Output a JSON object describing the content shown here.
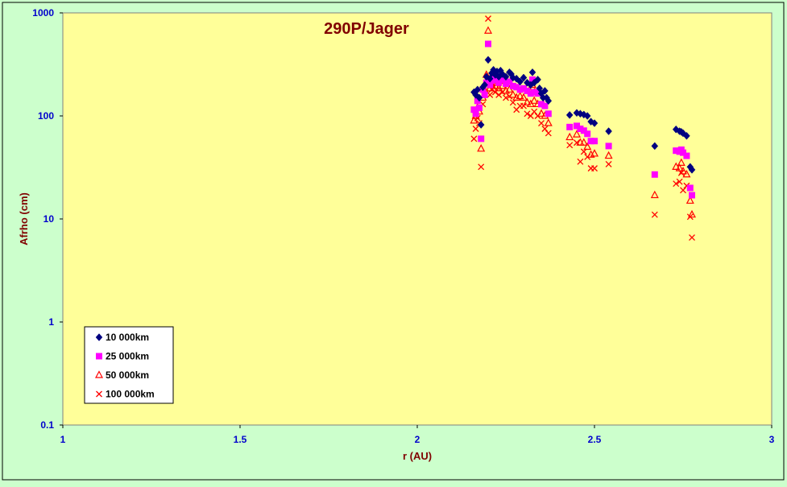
{
  "colors": {
    "page_bg": "#ccffcc",
    "plot_bg": "#ffff99",
    "title": "#800000",
    "tick_labels": "#0000cc"
  },
  "chart_data": {
    "type": "scatter",
    "title": "290P/Jager",
    "xlabel": "r (AU)",
    "ylabel": "Afrho (cm)",
    "xlim": [
      1,
      3
    ],
    "ylim": [
      0.1,
      1000
    ],
    "yscale": "log",
    "grid": false,
    "legend_position": "bottom-left",
    "x_ticks": [
      {
        "value": 1,
        "label": "1"
      },
      {
        "value": 1.5,
        "label": "1.5"
      },
      {
        "value": 2,
        "label": "2"
      },
      {
        "value": 2.5,
        "label": "2.5"
      },
      {
        "value": 3,
        "label": "3"
      }
    ],
    "y_ticks": [
      {
        "value": 0.1,
        "label": "0.1"
      },
      {
        "value": 1,
        "label": "1"
      },
      {
        "value": 10,
        "label": "10"
      },
      {
        "value": 100,
        "label": "100"
      },
      {
        "value": 1000,
        "label": "1000"
      }
    ],
    "series": [
      {
        "name": "10 000km",
        "marker": "diamond",
        "color": "#000080",
        "points": [
          [
            2.16,
            170
          ],
          [
            2.165,
            160
          ],
          [
            2.17,
            180
          ],
          [
            2.175,
            150
          ],
          [
            2.18,
            82
          ],
          [
            2.185,
            190
          ],
          [
            2.19,
            200
          ],
          [
            2.195,
            240
          ],
          [
            2.2,
            350
          ],
          [
            2.205,
            230
          ],
          [
            2.21,
            260
          ],
          [
            2.215,
            280
          ],
          [
            2.22,
            250
          ],
          [
            2.225,
            270
          ],
          [
            2.23,
            240
          ],
          [
            2.235,
            275
          ],
          [
            2.24,
            255
          ],
          [
            2.25,
            240
          ],
          [
            2.26,
            265
          ],
          [
            2.265,
            255
          ],
          [
            2.27,
            235
          ],
          [
            2.28,
            230
          ],
          [
            2.29,
            215
          ],
          [
            2.3,
            235
          ],
          [
            2.31,
            210
          ],
          [
            2.32,
            200
          ],
          [
            2.325,
            265
          ],
          [
            2.33,
            210
          ],
          [
            2.34,
            225
          ],
          [
            2.345,
            185
          ],
          [
            2.35,
            165
          ],
          [
            2.355,
            150
          ],
          [
            2.36,
            175
          ],
          [
            2.365,
            150
          ],
          [
            2.37,
            140
          ],
          [
            2.43,
            102
          ],
          [
            2.45,
            107
          ],
          [
            2.46,
            105
          ],
          [
            2.47,
            103
          ],
          [
            2.48,
            100
          ],
          [
            2.49,
            88
          ],
          [
            2.5,
            85
          ],
          [
            2.54,
            71
          ],
          [
            2.67,
            51
          ],
          [
            2.73,
            74
          ],
          [
            2.74,
            71
          ],
          [
            2.745,
            70
          ],
          [
            2.75,
            68
          ],
          [
            2.76,
            64
          ],
          [
            2.77,
            32
          ],
          [
            2.775,
            30
          ]
        ]
      },
      {
        "name": "25 000km",
        "marker": "square",
        "color": "#ff00ff",
        "points": [
          [
            2.16,
            115
          ],
          [
            2.165,
            105
          ],
          [
            2.17,
            140
          ],
          [
            2.175,
            120
          ],
          [
            2.18,
            60
          ],
          [
            2.185,
            180
          ],
          [
            2.19,
            160
          ],
          [
            2.195,
            210
          ],
          [
            2.2,
            500
          ],
          [
            2.205,
            200
          ],
          [
            2.21,
            220
          ],
          [
            2.215,
            235
          ],
          [
            2.22,
            225
          ],
          [
            2.23,
            210
          ],
          [
            2.24,
            225
          ],
          [
            2.25,
            205
          ],
          [
            2.26,
            215
          ],
          [
            2.27,
            195
          ],
          [
            2.28,
            190
          ],
          [
            2.29,
            180
          ],
          [
            2.3,
            185
          ],
          [
            2.31,
            175
          ],
          [
            2.32,
            165
          ],
          [
            2.325,
            225
          ],
          [
            2.33,
            170
          ],
          [
            2.34,
            165
          ],
          [
            2.35,
            130
          ],
          [
            2.36,
            125
          ],
          [
            2.37,
            105
          ],
          [
            2.43,
            78
          ],
          [
            2.45,
            80
          ],
          [
            2.46,
            75
          ],
          [
            2.47,
            72
          ],
          [
            2.48,
            67
          ],
          [
            2.49,
            57
          ],
          [
            2.5,
            57
          ],
          [
            2.54,
            51
          ],
          [
            2.67,
            27
          ],
          [
            2.73,
            46
          ],
          [
            2.74,
            45
          ],
          [
            2.745,
            47
          ],
          [
            2.75,
            44
          ],
          [
            2.76,
            41
          ],
          [
            2.77,
            20
          ],
          [
            2.775,
            17
          ]
        ]
      },
      {
        "name": "50 000km",
        "marker": "triangle",
        "color": "#ff0000",
        "points": [
          [
            2.16,
            90
          ],
          [
            2.165,
            100
          ],
          [
            2.17,
            120
          ],
          [
            2.175,
            110
          ],
          [
            2.18,
            48
          ],
          [
            2.185,
            150
          ],
          [
            2.19,
            180
          ],
          [
            2.195,
            250
          ],
          [
            2.2,
            670
          ],
          [
            2.205,
            185
          ],
          [
            2.21,
            200
          ],
          [
            2.215,
            210
          ],
          [
            2.22,
            195
          ],
          [
            2.23,
            185
          ],
          [
            2.24,
            195
          ],
          [
            2.25,
            175
          ],
          [
            2.26,
            180
          ],
          [
            2.27,
            160
          ],
          [
            2.28,
            150
          ],
          [
            2.29,
            155
          ],
          [
            2.3,
            150
          ],
          [
            2.31,
            135
          ],
          [
            2.32,
            130
          ],
          [
            2.325,
            200
          ],
          [
            2.33,
            140
          ],
          [
            2.34,
            130
          ],
          [
            2.35,
            105
          ],
          [
            2.36,
            100
          ],
          [
            2.37,
            85
          ],
          [
            2.43,
            62
          ],
          [
            2.45,
            66
          ],
          [
            2.46,
            55
          ],
          [
            2.47,
            55
          ],
          [
            2.48,
            50
          ],
          [
            2.49,
            42
          ],
          [
            2.5,
            43
          ],
          [
            2.54,
            41
          ],
          [
            2.67,
            17
          ],
          [
            2.73,
            32
          ],
          [
            2.74,
            31
          ],
          [
            2.745,
            35
          ],
          [
            2.75,
            29
          ],
          [
            2.76,
            27
          ],
          [
            2.77,
            15
          ],
          [
            2.775,
            11
          ]
        ]
      },
      {
        "name": "100 000km",
        "marker": "x",
        "color": "#ff0000",
        "points": [
          [
            2.16,
            60
          ],
          [
            2.165,
            75
          ],
          [
            2.17,
            95
          ],
          [
            2.175,
            85
          ],
          [
            2.18,
            32
          ],
          [
            2.185,
            130
          ],
          [
            2.19,
            160
          ],
          [
            2.195,
            230
          ],
          [
            2.2,
            880
          ],
          [
            2.205,
            160
          ],
          [
            2.21,
            180
          ],
          [
            2.215,
            190
          ],
          [
            2.22,
            170
          ],
          [
            2.23,
            160
          ],
          [
            2.24,
            170
          ],
          [
            2.25,
            150
          ],
          [
            2.26,
            155
          ],
          [
            2.27,
            135
          ],
          [
            2.28,
            115
          ],
          [
            2.29,
            125
          ],
          [
            2.3,
            125
          ],
          [
            2.31,
            105
          ],
          [
            2.32,
            100
          ],
          [
            2.325,
            175
          ],
          [
            2.33,
            110
          ],
          [
            2.34,
            100
          ],
          [
            2.35,
            85
          ],
          [
            2.36,
            75
          ],
          [
            2.37,
            68
          ],
          [
            2.43,
            52
          ],
          [
            2.45,
            55
          ],
          [
            2.46,
            36
          ],
          [
            2.47,
            45
          ],
          [
            2.48,
            40
          ],
          [
            2.49,
            31
          ],
          [
            2.5,
            31
          ],
          [
            2.54,
            34
          ],
          [
            2.67,
            11
          ],
          [
            2.73,
            22
          ],
          [
            2.74,
            23
          ],
          [
            2.745,
            28
          ],
          [
            2.75,
            19
          ],
          [
            2.76,
            21
          ],
          [
            2.77,
            10.5
          ],
          [
            2.775,
            6.6
          ]
        ]
      }
    ]
  }
}
